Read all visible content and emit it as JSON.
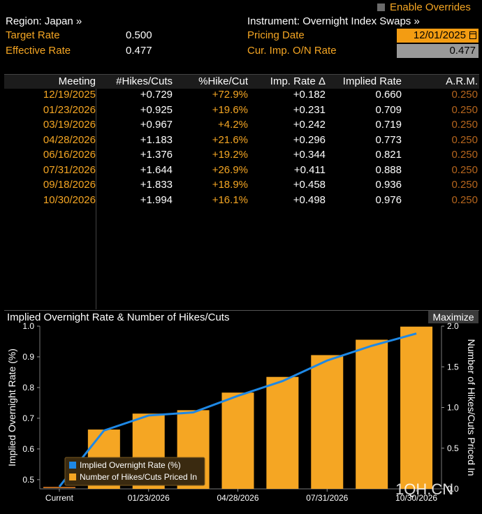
{
  "header": {
    "region_label": "Region: Japan »",
    "target_rate_label": "Target Rate",
    "target_rate_value": "0.500",
    "effective_rate_label": "Effective Rate",
    "effective_rate_value": "0.477",
    "overrides_label": "Enable Overrides",
    "instrument_label": "Instrument: Overnight Index Swaps »",
    "pricing_date_label": "Pricing Date",
    "pricing_date_value": "12/01/2025",
    "cur_imp_label": "Cur. Imp. O/N Rate",
    "cur_imp_value": "0.477"
  },
  "table": {
    "columns": [
      "Meeting",
      "#Hikes/Cuts",
      "%Hike/Cut",
      "Imp. Rate Δ",
      "Implied Rate",
      "A.R.M."
    ],
    "rows": [
      [
        "12/19/2025",
        "+0.729",
        "+72.9%",
        "+0.182",
        "0.660",
        "0.250"
      ],
      [
        "01/23/2026",
        "+0.925",
        "+19.6%",
        "+0.231",
        "0.709",
        "0.250"
      ],
      [
        "03/19/2026",
        "+0.967",
        "+4.2%",
        "+0.242",
        "0.719",
        "0.250"
      ],
      [
        "04/28/2026",
        "+1.183",
        "+21.6%",
        "+0.296",
        "0.773",
        "0.250"
      ],
      [
        "06/16/2026",
        "+1.376",
        "+19.2%",
        "+0.344",
        "0.821",
        "0.250"
      ],
      [
        "07/31/2026",
        "+1.644",
        "+26.9%",
        "+0.411",
        "0.888",
        "0.250"
      ],
      [
        "09/18/2026",
        "+1.833",
        "+18.9%",
        "+0.458",
        "0.936",
        "0.250"
      ],
      [
        "10/30/2026",
        "+1.994",
        "+16.1%",
        "+0.498",
        "0.976",
        "0.250"
      ]
    ]
  },
  "chart_section": {
    "title": "Implied Overnight Rate & Number of Hikes/Cuts",
    "maximize_label": "Maximize"
  },
  "watermark": "1QH.CN",
  "colors": {
    "accent_orange": "#f5a623",
    "date_field_bg": "#f39c12",
    "line_blue": "#1e88e5",
    "bar_orange": "#f5a623"
  },
  "chart_data": {
    "type": "bar",
    "categories": [
      "Current",
      "12/19/2025",
      "01/23/2026",
      "03/19/2026",
      "04/28/2026",
      "06/16/2026",
      "07/31/2026",
      "09/18/2026",
      "10/30/2026"
    ],
    "x_tick_labels": [
      "Current",
      "01/23/2026",
      "04/28/2026",
      "07/31/2026",
      "10/30/2026"
    ],
    "ylabel_left": "Implied Overnight Rate (%)",
    "ylabel_right": "Number of Hikes/Cuts Priced In",
    "ylim_left": [
      0.47,
      1.0
    ],
    "ylim_right": [
      0.0,
      2.0
    ],
    "yticks_left": [
      "0.5",
      "0.6",
      "0.7",
      "0.8",
      "0.9",
      "1.0"
    ],
    "yticks_right": [
      "0.0",
      "0.5",
      "1.0",
      "1.5",
      "2.0"
    ],
    "series": [
      {
        "name": "Implied Overnight Rate (%)",
        "type": "line",
        "values": [
          0.477,
          0.66,
          0.709,
          0.719,
          0.773,
          0.821,
          0.888,
          0.936,
          0.976
        ]
      },
      {
        "name": "Number of Hikes/Cuts Priced In",
        "type": "bar",
        "values": [
          0.0,
          0.729,
          0.925,
          0.967,
          1.183,
          1.376,
          1.644,
          1.833,
          1.994
        ]
      }
    ],
    "legend_position": "bottom-left",
    "grid": false
  }
}
